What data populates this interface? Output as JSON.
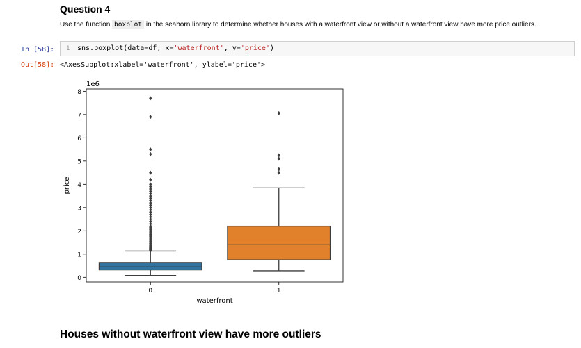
{
  "question": {
    "title": "Question 4",
    "text_before": "Use the function ",
    "code_word": "boxplot",
    "text_after": " in the seaborn library to determine whether houses with a waterfront view or without a waterfront view have more price outliers."
  },
  "cell": {
    "in_prompt": "In [58]:",
    "line_number": "1",
    "code_fn": "sns.boxplot(data=df, x=",
    "code_arg1": "'waterfront'",
    "code_mid": ", y=",
    "code_arg2": "'price'",
    "code_end": ")",
    "out_prompt": "Out[58]:",
    "output_text": "<AxesSubplot:xlabel='waterfront', ylabel='price'>"
  },
  "chart_data": {
    "type": "box",
    "xlabel": "waterfront",
    "ylabel": "price",
    "scale_label": "1e6",
    "categories": [
      "0",
      "1"
    ],
    "ylim": [
      -0.2,
      8.1
    ],
    "y_ticks": [
      0,
      1,
      2,
      3,
      4,
      5,
      6,
      7,
      8
    ],
    "y_tick_labels": [
      "0",
      "1",
      "2",
      "3",
      "4",
      "5",
      "6",
      "7",
      "8"
    ],
    "boxes": [
      {
        "category": "0",
        "color": "#3274a1",
        "whisker_low": 0.08,
        "q1": 0.32,
        "median": 0.45,
        "q3": 0.64,
        "whisker_high": 1.13,
        "outliers": [
          1.15,
          1.18,
          1.2,
          1.22,
          1.24,
          1.26,
          1.28,
          1.3,
          1.33,
          1.36,
          1.4,
          1.45,
          1.5,
          1.55,
          1.6,
          1.65,
          1.7,
          1.75,
          1.8,
          1.85,
          1.9,
          1.95,
          2.0,
          2.05,
          2.1,
          2.15,
          2.2,
          2.3,
          2.4,
          2.5,
          2.6,
          2.7,
          2.8,
          2.9,
          3.0,
          3.1,
          3.2,
          3.3,
          3.4,
          3.5,
          3.6,
          3.7,
          3.8,
          3.9,
          4.0,
          4.2,
          4.5,
          5.3,
          5.5,
          6.9,
          7.7
        ]
      },
      {
        "category": "1",
        "color": "#e1812c",
        "whisker_low": 0.28,
        "q1": 0.75,
        "median": 1.4,
        "q3": 2.2,
        "whisker_high": 3.85,
        "outliers": [
          4.5,
          4.65,
          5.1,
          5.25,
          7.06
        ]
      }
    ]
  },
  "answer": {
    "text": "Houses without waterfront view have more outliers"
  }
}
